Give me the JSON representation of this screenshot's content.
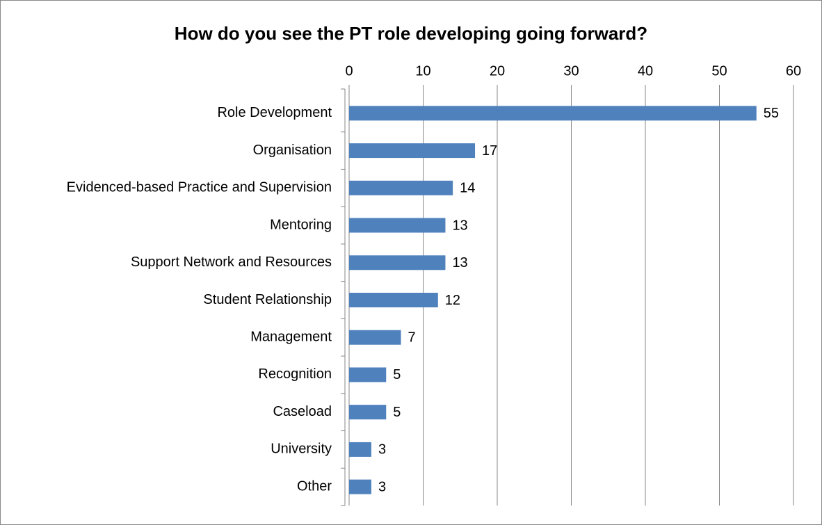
{
  "chart_data": {
    "type": "bar",
    "orientation": "horizontal",
    "title": "How do you see the PT role developing going forward?",
    "categories": [
      "Role Development",
      "Organisation",
      "Evidenced-based Practice and Supervision",
      "Mentoring",
      "Support Network and Resources",
      "Student Relationship",
      "Management",
      "Recognition",
      "Caseload",
      "University",
      "Other"
    ],
    "values": [
      55,
      17,
      14,
      13,
      13,
      12,
      7,
      5,
      5,
      3,
      3
    ],
    "color": "#4f81bd",
    "xlim": [
      0,
      60
    ],
    "xticks": [
      0,
      10,
      20,
      30,
      40,
      50,
      60
    ],
    "grid": true
  }
}
